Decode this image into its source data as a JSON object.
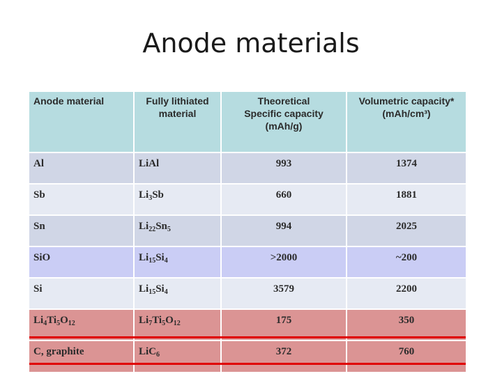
{
  "slide": {
    "title": "Anode materials"
  },
  "table": {
    "headers": [
      {
        "lines": [
          "Anode material"
        ]
      },
      {
        "lines": [
          "Fully lithiated",
          "material"
        ]
      },
      {
        "lines": [
          "Theoretical",
          "Specific capacity",
          "(mAh/g)"
        ]
      },
      {
        "lines": [
          "Volumetric capacity*",
          "(mAh/cm³)"
        ]
      }
    ],
    "rows": [
      {
        "anode": [
          "Al"
        ],
        "lithiated": [
          "LiAl"
        ],
        "specific": "993",
        "volumetric": "1374"
      },
      {
        "anode": [
          "Sb"
        ],
        "lithiated": [
          "Li",
          "3",
          "Sb"
        ],
        "specific": "660",
        "volumetric": "1881"
      },
      {
        "anode": [
          "Sn"
        ],
        "lithiated": [
          "Li",
          "22",
          "Sn",
          "5"
        ],
        "specific": "994",
        "volumetric": "2025"
      },
      {
        "anode": [
          "SiO"
        ],
        "lithiated": [
          "Li",
          "15",
          "Si",
          "4"
        ],
        "specific": ">2000",
        "volumetric": "~200"
      },
      {
        "anode": [
          "Si"
        ],
        "lithiated": [
          "Li",
          "15",
          "Si",
          "4"
        ],
        "specific": "3579",
        "volumetric": "2200"
      },
      {
        "anode": [
          "Li",
          "4",
          "Ti",
          "5",
          "O",
          "12"
        ],
        "lithiated": [
          "Li",
          "7",
          "Ti",
          "5",
          "O",
          "12"
        ],
        "specific": "175",
        "volumetric": "350"
      },
      {
        "anode": [
          "C, graphite"
        ],
        "lithiated": [
          "LiC",
          "6"
        ],
        "specific": "372",
        "volumetric": "760"
      }
    ],
    "row_colors": [
      "#d0d6e6",
      "#e6eaf3",
      "#d0d6e6",
      "#cacdf5",
      "#e6eaf3",
      "#db9494",
      "#db9494"
    ],
    "header_color": "#b6dce0",
    "highlight_line_color": "#e00000"
  }
}
